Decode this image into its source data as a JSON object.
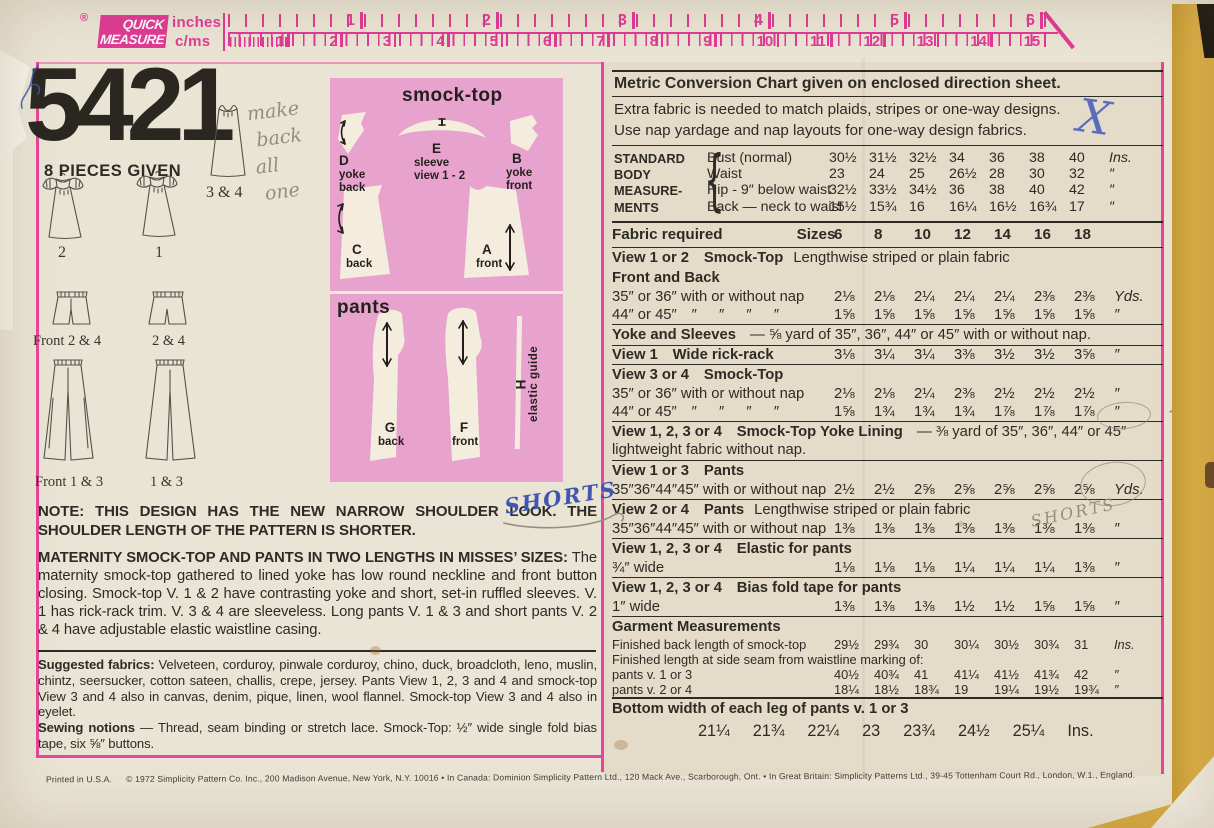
{
  "palette": {
    "ruler_pink": "#e03a94",
    "border_pink": "#e8459c",
    "diagram_pink": "#e7a2ce",
    "flap_yellow": "#d9a73f",
    "ink_blue": "#4156b0",
    "pencil_grey": "#958e7d",
    "paper": "#eae4d5"
  },
  "ruler": {
    "reg": "®",
    "brand": [
      "QUICK",
      "MEASURE"
    ],
    "units": [
      "inches",
      "c/ms"
    ],
    "inches": [
      "1",
      "2",
      "3",
      "4",
      "5",
      "6"
    ],
    "cms": [
      "1",
      "2",
      "3",
      "4",
      "5",
      "6",
      "7",
      "8",
      "9",
      "10",
      "11",
      "12",
      "13",
      "14",
      "15"
    ]
  },
  "left_column": {
    "pattern_number": "5421",
    "pieces_given": "8 PIECES GIVEN",
    "sketch_labels": {
      "view2": "2",
      "view1": "1",
      "view34": "3 & 4",
      "shorts_front": "Front 2 & 4",
      "shorts_back": "2 & 4",
      "pants_front": "Front 1 & 3",
      "pants_back": "1 & 3"
    },
    "handwriting": {
      "make_back": [
        "make",
        "back",
        "all",
        "one"
      ],
      "shorts_blue": "SHORTS",
      "shorts_pencil": "SHORTS",
      "check_x": "X"
    },
    "note": "NOTE: THIS DESIGN HAS THE NEW NARROW SHOULDER LOOK. THE SHOULDER LENGTH OF THE PATTERN IS SHORTER.",
    "description_lead": "MATERNITY SMOCK-TOP AND PANTS IN TWO LENGTHS IN MISSES’ SIZES:",
    "description": " The maternity smock-top gathered to lined yoke has low round neckline and front button closing. Smock-top V. 1 & 2 have contrasting yoke and short, set-in ruffled sleeves. V. 1 has rick-rack trim. V. 3 & 4 are sleeveless. Long pants V. 1 & 3 and short pants V. 2 & 4 have adjustable elastic waistline casing.",
    "fabrics_lead": "Suggested fabrics:",
    "fabrics": " Velveteen, corduroy, pinwale corduroy, chino, duck, broadcloth, leno, muslin, chintz, seersucker, cotton sateen, challis, crepe, jersey. Pants View 1, 2, 3 and 4 and smock-top View 3 and 4 also in canvas, denim, pique, linen, wool flannel. Smock-top View 3 and 4 also in eyelet.",
    "notions_lead": "Sewing notions",
    "notions": " — Thread, seam binding or stretch lace. Smock-Top: ½″ wide single fold bias tape, six ⅝″ buttons."
  },
  "diagram": {
    "smock_title": "smock-top",
    "pants_title": "pants",
    "pieces": {
      "d": {
        "letter": "D",
        "l1": "yoke",
        "l2": "back"
      },
      "e": {
        "letter": "E",
        "l1": "sleeve",
        "l2": "view 1 - 2"
      },
      "b": {
        "letter": "B",
        "l1": "yoke",
        "l2": "front"
      },
      "c": {
        "letter": "C",
        "l1": "back"
      },
      "a": {
        "letter": "A",
        "l1": "front"
      },
      "g": {
        "letter": "G",
        "l1": "back"
      },
      "f": {
        "letter": "F",
        "l1": "front"
      },
      "h": {
        "letter": "H",
        "l1": "elastic guide"
      }
    }
  },
  "right_column": {
    "metric_note": "Metric Conversion Chart given on enclosed direction sheet.",
    "nap_note_1": "Extra fabric is needed to match plaids, stripes or one-way designs.",
    "nap_note_2": "Use nap yardage and nap layouts for one-way design fabrics.",
    "body_measurements": {
      "caption": [
        "STANDARD",
        "BODY",
        "MEASURE-",
        "MENTS"
      ],
      "rows": [
        {
          "label": "Bust (normal)",
          "values": [
            "30½",
            "31½",
            "32½",
            "34",
            "36",
            "38",
            "40"
          ],
          "unit": "Ins."
        },
        {
          "label": "Waist",
          "values": [
            "23",
            "24",
            "25",
            "26½",
            "28",
            "30",
            "32"
          ],
          "unit": "″"
        },
        {
          "label": "Hip - 9″ below waist",
          "values": [
            "32½",
            "33½",
            "34½",
            "36",
            "38",
            "40",
            "42"
          ],
          "unit": "″"
        },
        {
          "label": "Back — neck to waist",
          "values": [
            "15½",
            "15¾",
            "16",
            "16¼",
            "16½",
            "16¾",
            "17"
          ],
          "unit": "″"
        }
      ]
    },
    "table": {
      "rows": [
        {
          "t": "head",
          "b": "Fabric required",
          "n": "Sizes",
          "v": [
            "6",
            "8",
            "10",
            "12",
            "14",
            "16",
            "18"
          ],
          "u": "",
          "r": 2
        },
        {
          "t": "sec",
          "b": "View 1 or 2  Smock-Top",
          "n": "Lengthwise striped or plain fabric",
          "r": 1
        },
        {
          "t": "sec",
          "b": "Front and Back"
        },
        {
          "t": "val",
          "label": "35″ or 36″ with or without nap",
          "v": [
            "2⅛",
            "2⅛",
            "2¼",
            "2¼",
            "2¼",
            "2⅜",
            "2⅜"
          ],
          "u": "Yds."
        },
        {
          "t": "val",
          "label": "44″ or 45″  ″   ″   ″   ″",
          "v": [
            "1⅝",
            "1⅝",
            "1⅝",
            "1⅝",
            "1⅝",
            "1⅝",
            "1⅝"
          ],
          "u": "″"
        },
        {
          "t": "note",
          "b": "Yoke and Sleeves",
          "n": " — ⅝ yard of 35″, 36″, 44″ or 45″ with or without nap.",
          "r": 1
        },
        {
          "t": "val",
          "bold": true,
          "label": "View 1  Wide rick-rack",
          "v": [
            "3⅛",
            "3¼",
            "3¼",
            "3⅜",
            "3½",
            "3½",
            "3⅝"
          ],
          "u": "″",
          "r": 1
        },
        {
          "t": "sec",
          "b": "View 3 or 4  Smock-Top",
          "r": 1
        },
        {
          "t": "val",
          "label": "35″ or 36″ with or without nap",
          "v": [
            "2⅛",
            "2⅛",
            "2¼",
            "2⅜",
            "2½",
            "2½",
            "2½"
          ],
          "u": "″"
        },
        {
          "t": "val",
          "label": "44″ or 45″  ″   ″   ″   ″",
          "v": [
            "1⅝",
            "1¾",
            "1¾",
            "1¾",
            "1⅞",
            "1⅞",
            "1⅞"
          ],
          "u": "″"
        },
        {
          "t": "note",
          "b": "View 1, 2, 3 or 4  Smock-Top Yoke Lining",
          "n": " — ⅜ yard of 35″, 36″, 44″ or 45″ lightweight fabric without nap.",
          "r": 1
        },
        {
          "t": "sec",
          "b": "View 1 or 3  Pants",
          "r": 1
        },
        {
          "t": "val",
          "label": "35″36″44″45″ with or without nap",
          "v": [
            "2½",
            "2½",
            "2⅝",
            "2⅝",
            "2⅝",
            "2⅝",
            "2⅝"
          ],
          "u": "Yds."
        },
        {
          "t": "sec",
          "b": "View 2 or 4  Pants",
          "n": "Lengthwise striped or plain fabric",
          "r": 1
        },
        {
          "t": "val",
          "label": "35″36″44″45″ with or without nap",
          "v": [
            "1⅜",
            "1⅜",
            "1⅜",
            "1⅜",
            "1⅜",
            "1⅜",
            "1⅜"
          ],
          "u": "″"
        },
        {
          "t": "sec",
          "b": "View 1, 2, 3 or 4  Elastic for pants",
          "r": 1
        },
        {
          "t": "val",
          "label": "¾″ wide",
          "v": [
            "1⅛",
            "1⅛",
            "1⅛",
            "1¼",
            "1¼",
            "1¼",
            "1⅜"
          ],
          "u": "″"
        },
        {
          "t": "sec",
          "b": "View 1, 2, 3 or 4  Bias fold tape for pants",
          "r": 1
        },
        {
          "t": "val",
          "label": "1″ wide",
          "v": [
            "1⅜",
            "1⅜",
            "1⅜",
            "1½",
            "1½",
            "1⅝",
            "1⅝"
          ],
          "u": "″"
        },
        {
          "t": "sec",
          "b": "Garment Measurements",
          "r": 1
        },
        {
          "t": "val",
          "sm": true,
          "label": "Finished back length of smock-top",
          "v": [
            "29½",
            "29¾",
            "30",
            "30¼",
            "30½",
            "30¾",
            "31"
          ],
          "u": "Ins."
        },
        {
          "t": "txt",
          "sm": true,
          "n": "Finished length at side seam from waistline marking of:"
        },
        {
          "t": "val",
          "sm": true,
          "label": "pants v. 1 or 3",
          "v": [
            "40½",
            "40¾",
            "41",
            "41¼",
            "41½",
            "41¾",
            "42"
          ],
          "u": "″"
        },
        {
          "t": "val",
          "sm": true,
          "label": "pants v. 2 or 4",
          "v": [
            "18¼",
            "18½",
            "18¾",
            "19",
            "19¼",
            "19½",
            "19¾"
          ],
          "u": "″"
        },
        {
          "t": "sec",
          "b": "Bottom width of each leg of pants v. 1 or 3",
          "r": 2
        },
        {
          "t": "big",
          "v": [
            "21¼",
            "21¾",
            "22¼",
            "23",
            "23¾",
            "24½",
            "25¼"
          ],
          "u": "Ins."
        }
      ]
    }
  },
  "footer": {
    "printed": "Printed in U.S.A.",
    "copyright": "© 1972 Simplicity Pattern Co. Inc., 200 Madison Avenue, New York, N.Y. 10016 • In Canada: Dominion Simplicity Pattern Ltd., 120 Mack Ave., Scarborough, Ont. • In Great Britain: Simplicity Patterns Ltd., 39-45 Tottenham Court Rd., London, W.1., England."
  }
}
